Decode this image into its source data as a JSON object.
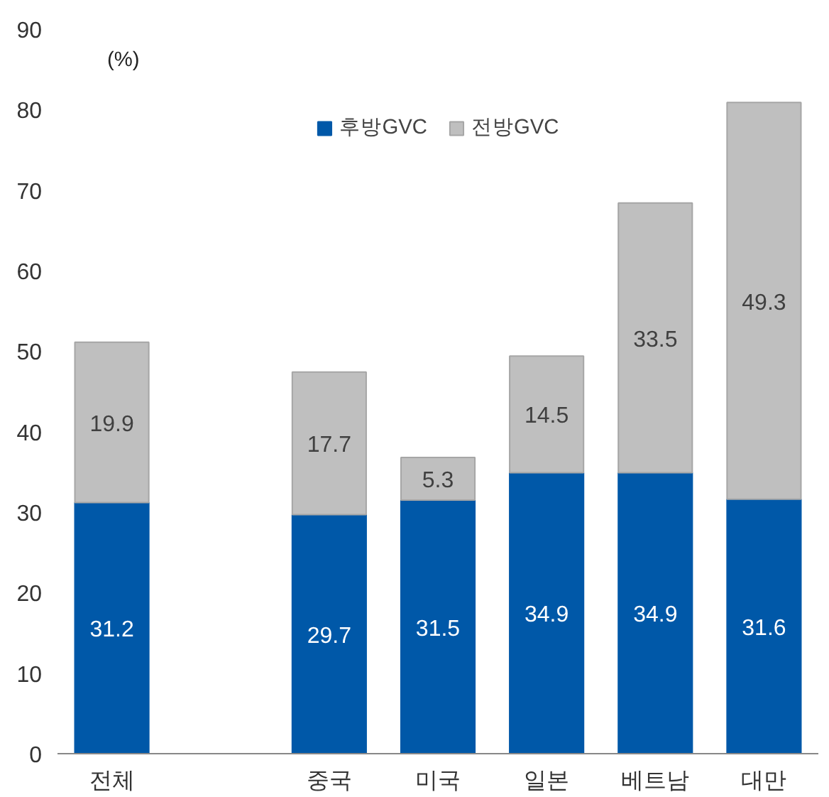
{
  "chart_data": {
    "type": "bar",
    "stacked": true,
    "ylabel": "(%)",
    "categories": [
      "전체",
      null,
      "중국",
      "미국",
      "일본",
      "베트남",
      "대만"
    ],
    "series": [
      {
        "name": "후방GVC",
        "color": "#0058a8",
        "values": [
          31.2,
          null,
          29.7,
          31.5,
          34.9,
          34.9,
          31.6
        ]
      },
      {
        "name": "전방GVC",
        "color": "#bfbfbf",
        "values": [
          19.9,
          null,
          17.7,
          5.3,
          14.5,
          33.5,
          49.3
        ]
      }
    ],
    "ylim": [
      0,
      90
    ],
    "yticks": [
      0,
      10,
      20,
      30,
      40,
      50,
      60,
      70,
      80,
      90
    ],
    "data_labels": true,
    "legend": "top",
    "grid": false
  }
}
